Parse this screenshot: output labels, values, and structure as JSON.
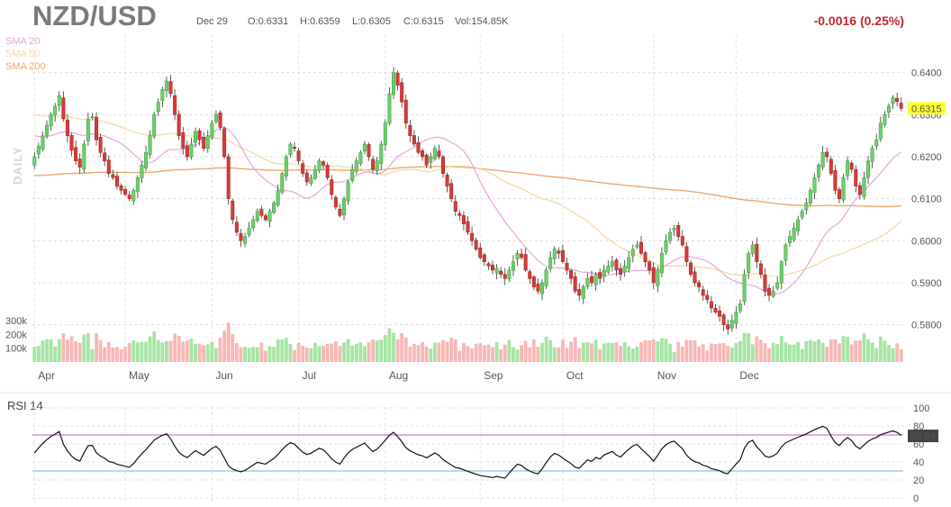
{
  "header": {
    "symbol": "NZD/USD",
    "date": "Dec 29",
    "open": "O:0.6331",
    "high": "H:0.6359",
    "low": "L:0.6305",
    "close": "C:0.6315",
    "volume": "Vol:154.85K",
    "change": "-0.0016 (0.25%)",
    "change_color": "#c0282d"
  },
  "legend": [
    {
      "label": "SMA 20",
      "color": "#e6a6dc"
    },
    {
      "label": "SMA 50",
      "color": "#f3d9a2"
    },
    {
      "label": "SMA 200",
      "color": "#f1a66e"
    }
  ],
  "timeframe_label": "DAILY",
  "rsi_label": "RSI 14",
  "colors": {
    "up": "#6ccf6c",
    "down": "#d63a3a",
    "vol_up": "#a6e5a3",
    "vol_down": "#f7b8b8",
    "rsi_line": "#111111",
    "rsi_upper": "#b164c7",
    "rsi_lower": "#73b6d6",
    "last_price_bg": "#ffff33"
  },
  "chart_data": [
    {
      "type": "candlestick",
      "title": "NZD/USD",
      "y_ticks": [
        "0.6400",
        "0.6300",
        "0.6200",
        "0.6100",
        "0.6000",
        "0.5900",
        "0.5800"
      ],
      "ylim": [
        0.5765,
        0.644
      ],
      "x_months": [
        "Apr",
        "May",
        "Jun",
        "Jul",
        "Aug",
        "Sep",
        "Oct",
        "Nov",
        "Dec"
      ],
      "last_price": "0.6315",
      "closes": [
        0.62,
        0.6225,
        0.625,
        0.6275,
        0.63,
        0.632,
        0.6345,
        0.629,
        0.625,
        0.6215,
        0.619,
        0.6175,
        0.623,
        0.629,
        0.6295,
        0.624,
        0.621,
        0.619,
        0.616,
        0.615,
        0.613,
        0.612,
        0.611,
        0.61,
        0.612,
        0.615,
        0.618,
        0.621,
        0.625,
        0.63,
        0.633,
        0.636,
        0.638,
        0.635,
        0.63,
        0.625,
        0.622,
        0.62,
        0.623,
        0.626,
        0.624,
        0.622,
        0.625,
        0.628,
        0.63,
        0.627,
        0.62,
        0.61,
        0.605,
        0.602,
        0.6,
        0.601,
        0.603,
        0.605,
        0.607,
        0.606,
        0.605,
        0.607,
        0.609,
        0.612,
        0.616,
        0.62,
        0.623,
        0.622,
        0.619,
        0.616,
        0.614,
        0.615,
        0.617,
        0.619,
        0.618,
        0.615,
        0.611,
        0.608,
        0.606,
        0.61,
        0.614,
        0.617,
        0.619,
        0.621,
        0.623,
        0.62,
        0.617,
        0.619,
        0.623,
        0.628,
        0.635,
        0.64,
        0.637,
        0.633,
        0.628,
        0.625,
        0.623,
        0.621,
        0.62,
        0.618,
        0.62,
        0.622,
        0.62,
        0.616,
        0.613,
        0.61,
        0.607,
        0.606,
        0.604,
        0.602,
        0.6,
        0.598,
        0.596,
        0.595,
        0.594,
        0.593,
        0.5935,
        0.592,
        0.591,
        0.593,
        0.595,
        0.597,
        0.596,
        0.593,
        0.591,
        0.589,
        0.588,
        0.59,
        0.593,
        0.596,
        0.598,
        0.597,
        0.595,
        0.593,
        0.591,
        0.588,
        0.587,
        0.589,
        0.591,
        0.59,
        0.592,
        0.591,
        0.593,
        0.594,
        0.595,
        0.593,
        0.592,
        0.594,
        0.596,
        0.598,
        0.599,
        0.597,
        0.595,
        0.593,
        0.59,
        0.593,
        0.597,
        0.6,
        0.602,
        0.603,
        0.601,
        0.599,
        0.595,
        0.592,
        0.59,
        0.589,
        0.587,
        0.586,
        0.584,
        0.583,
        0.582,
        0.58,
        0.579,
        0.581,
        0.583,
        0.585,
        0.592,
        0.597,
        0.599,
        0.595,
        0.592,
        0.588,
        0.587,
        0.588,
        0.59,
        0.595,
        0.599,
        0.601,
        0.603,
        0.605,
        0.607,
        0.609,
        0.612,
        0.615,
        0.618,
        0.621,
        0.62,
        0.616,
        0.612,
        0.61,
        0.615,
        0.619,
        0.617,
        0.613,
        0.611,
        0.615,
        0.619,
        0.622,
        0.624,
        0.628,
        0.63,
        0.632,
        0.634,
        0.6331,
        0.6315
      ]
    },
    {
      "type": "bar",
      "title": "Volume",
      "y_ticks": [
        "300k",
        "200k",
        "100k"
      ]
    },
    {
      "type": "line",
      "title": "RSI 14",
      "y_ticks": [
        "100",
        "80",
        "60",
        "40",
        "20",
        "0"
      ],
      "ylim": [
        0,
        100
      ],
      "last_value": "68.94",
      "upper_level": 70,
      "lower_level": 30
    }
  ]
}
